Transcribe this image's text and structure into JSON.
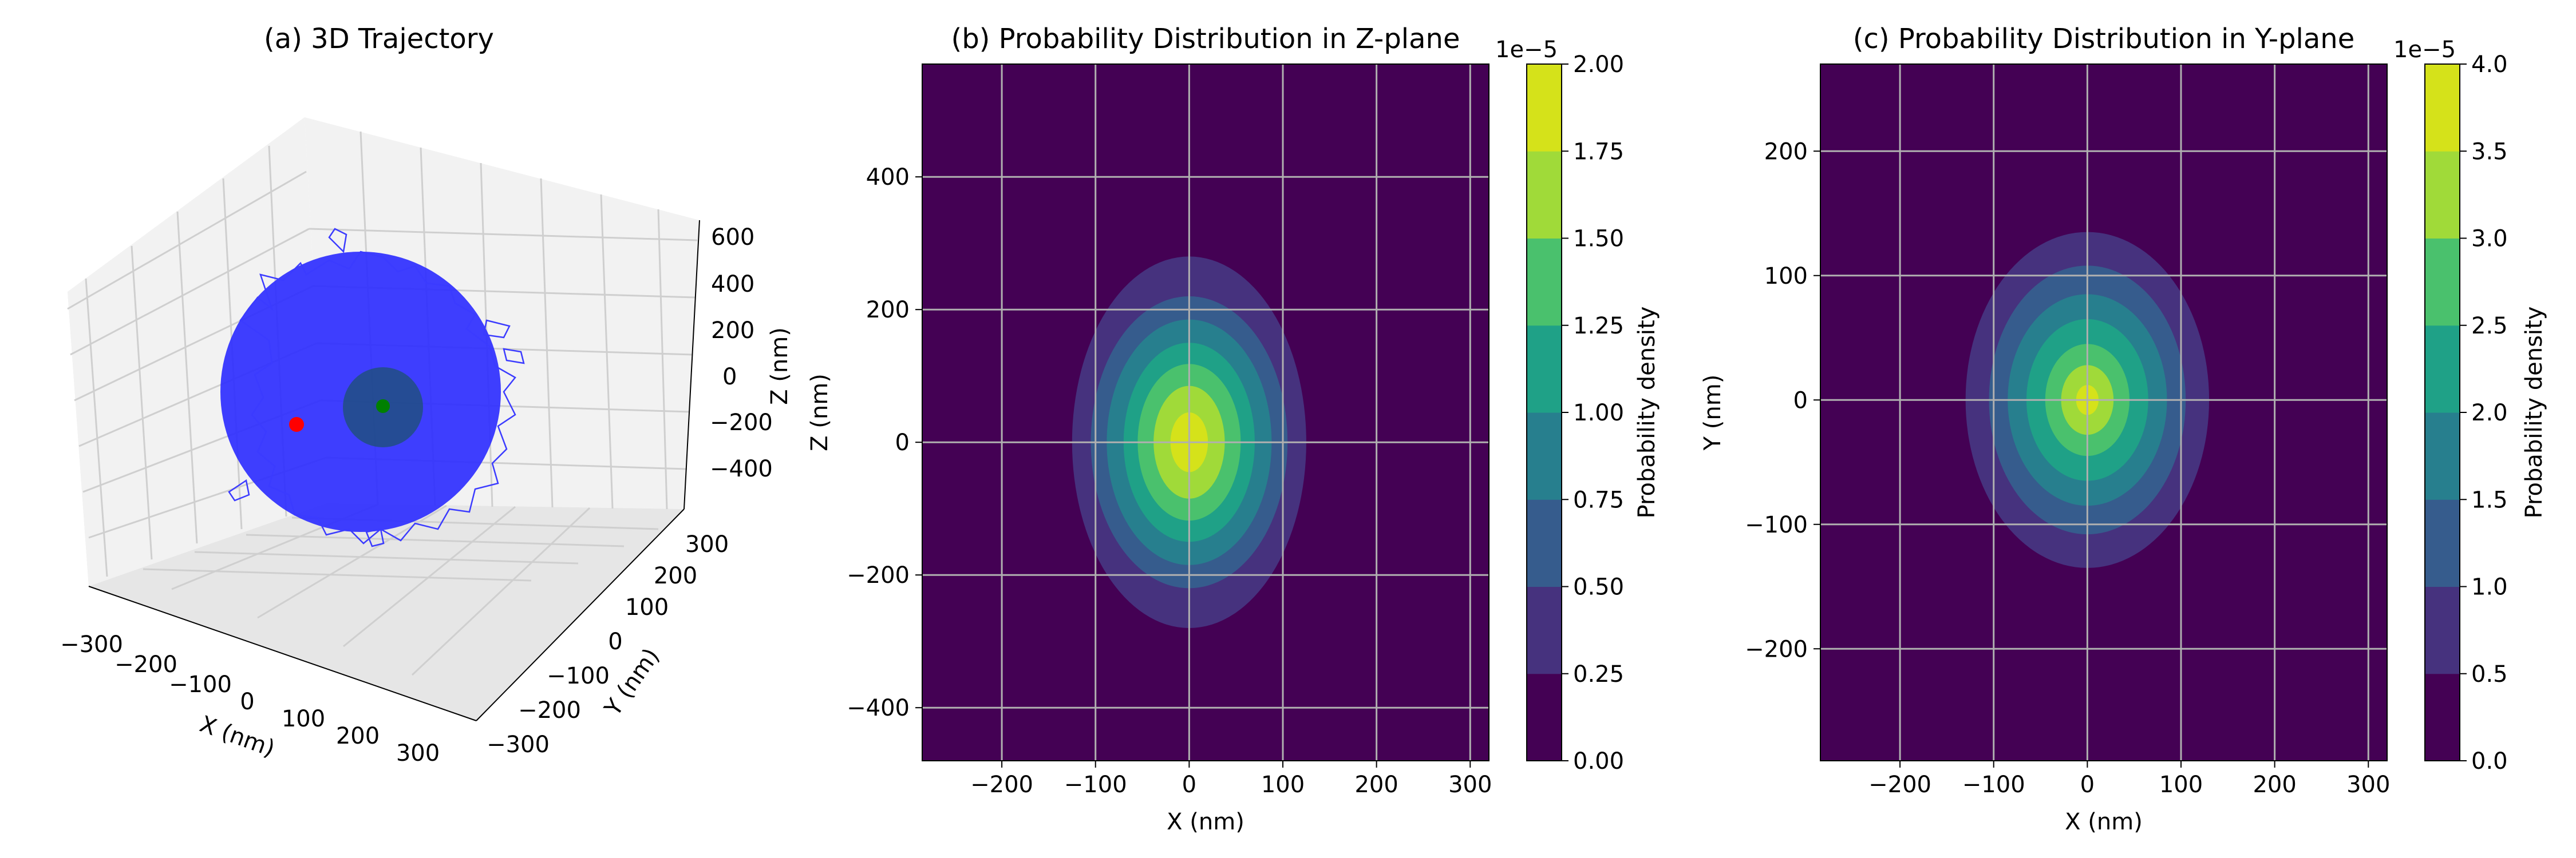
{
  "chart_data": [
    {
      "type": "scatter",
      "title": "(a) 3D Trajectory",
      "xlabel": "X (nm)",
      "ylabel": "Y (nm)",
      "zlabel": "Z (nm)",
      "x_ticks": [
        "−300",
        "−200",
        "−100",
        "0",
        "100",
        "200",
        "300"
      ],
      "y_ticks": [
        "−300",
        "−200",
        "−100",
        "0",
        "100",
        "200",
        "300"
      ],
      "z_ticks": [
        "−400",
        "−200",
        "0",
        "200",
        "400",
        "600"
      ],
      "xlim": [
        -330,
        330
      ],
      "ylim": [
        -330,
        330
      ],
      "zlim": [
        -480,
        650
      ],
      "grid": true,
      "trajectory_color": "#3b3bff",
      "cloud_color": "#2929ff",
      "points": [
        {
          "name": "start",
          "color": "#ff0000",
          "xyz": [
            -250,
            120,
            -60
          ]
        },
        {
          "name": "end",
          "color": "#008000",
          "xyz": [
            0,
            0,
            60
          ]
        }
      ],
      "sphere": {
        "color": "#1e5270",
        "radius": 90,
        "center": [
          0,
          0,
          60
        ]
      }
    },
    {
      "type": "heatmap",
      "title": "(b) Probability Distribution in Z-plane",
      "xlabel": "X (nm)",
      "ylabel": "Z (nm)",
      "xlim": [
        -285,
        320
      ],
      "ylim": [
        -480,
        570
      ],
      "x_ticks": [
        "−200",
        "−100",
        "0",
        "100",
        "200",
        "300"
      ],
      "x_tick_values": [
        -200,
        -100,
        0,
        100,
        200,
        300
      ],
      "y_ticks": [
        "−400",
        "−200",
        "0",
        "200",
        "400"
      ],
      "y_tick_values": [
        -400,
        -200,
        0,
        200,
        400
      ],
      "grid": true,
      "center": [
        0,
        0
      ],
      "contours": [
        {
          "level": 0.25,
          "rx": 125,
          "ry": 280
        },
        {
          "level": 0.5,
          "rx": 105,
          "ry": 220
        },
        {
          "level": 0.75,
          "rx": 88,
          "ry": 185
        },
        {
          "level": 1.0,
          "rx": 70,
          "ry": 150
        },
        {
          "level": 1.25,
          "rx": 55,
          "ry": 118
        },
        {
          "level": 1.5,
          "rx": 38,
          "ry": 85
        },
        {
          "level": 1.75,
          "rx": 20,
          "ry": 45
        }
      ],
      "colorbar": {
        "label": "Probability density",
        "scale_label": "1e−5",
        "tick_labels": [
          "0.00",
          "0.25",
          "0.50",
          "0.75",
          "1.00",
          "1.25",
          "1.50",
          "1.75",
          "2.00"
        ],
        "min": 0,
        "max": 2,
        "colors": [
          "#440154",
          "#46327e",
          "#365c8d",
          "#277f8e",
          "#1fa187",
          "#4ac16d",
          "#a0da39",
          "#d5e21a"
        ]
      }
    },
    {
      "type": "heatmap",
      "title": "(c) Probability Distribution in Y-plane",
      "xlabel": "X (nm)",
      "ylabel": "Y (nm)",
      "xlim": [
        -285,
        320
      ],
      "ylim": [
        -290,
        270
      ],
      "x_ticks": [
        "−200",
        "−100",
        "0",
        "100",
        "200",
        "300"
      ],
      "x_tick_values": [
        -200,
        -100,
        0,
        100,
        200,
        300
      ],
      "y_ticks": [
        "−200",
        "−100",
        "0",
        "100",
        "200"
      ],
      "y_tick_values": [
        -200,
        -100,
        0,
        100,
        200
      ],
      "grid": true,
      "center": [
        0,
        0
      ],
      "contours": [
        {
          "level": 0.5,
          "rx": 130,
          "ry": 135
        },
        {
          "level": 1.0,
          "rx": 105,
          "ry": 108
        },
        {
          "level": 1.5,
          "rx": 85,
          "ry": 85
        },
        {
          "level": 2.0,
          "rx": 65,
          "ry": 65
        },
        {
          "level": 2.5,
          "rx": 45,
          "ry": 45
        },
        {
          "level": 3.0,
          "rx": 28,
          "ry": 28
        },
        {
          "level": 3.5,
          "rx": 12,
          "ry": 12
        }
      ],
      "colorbar": {
        "label": "Probability density",
        "scale_label": "1e−5",
        "tick_labels": [
          "0.0",
          "0.5",
          "1.0",
          "1.5",
          "2.0",
          "2.5",
          "3.0",
          "3.5",
          "4.0"
        ],
        "min": 0,
        "max": 4,
        "colors": [
          "#440154",
          "#46327e",
          "#365c8d",
          "#277f8e",
          "#1fa187",
          "#4ac16d",
          "#a0da39",
          "#d5e21a"
        ]
      }
    }
  ]
}
